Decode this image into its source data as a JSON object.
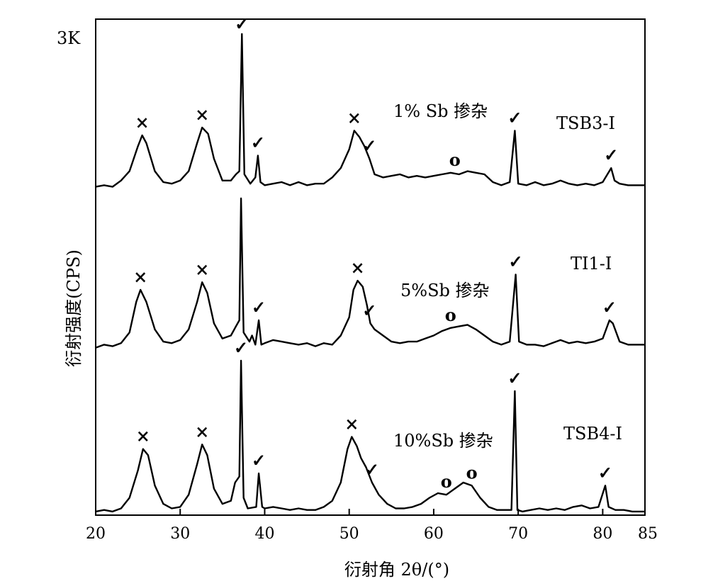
{
  "chart_data": {
    "type": "line",
    "title": "",
    "xlabel": "衍射角 2θ/(°)",
    "ylabel": "衍射强度(CPS)",
    "y_scale_label": "3K",
    "xlim": [
      20,
      85
    ],
    "x_ticks": [
      20,
      30,
      40,
      50,
      60,
      70,
      80,
      85
    ],
    "grid": false,
    "legend": "none",
    "series": [
      {
        "name": "TSB3-Ⅰ",
        "label": "1% Sb 掺杂",
        "points": [
          [
            20,
            0.02
          ],
          [
            21,
            0.03
          ],
          [
            22,
            0.02
          ],
          [
            23,
            0.06
          ],
          [
            24,
            0.12
          ],
          [
            25,
            0.28
          ],
          [
            25.5,
            0.35
          ],
          [
            26,
            0.3
          ],
          [
            27,
            0.12
          ],
          [
            28,
            0.05
          ],
          [
            29,
            0.04
          ],
          [
            30,
            0.06
          ],
          [
            31,
            0.12
          ],
          [
            32,
            0.3
          ],
          [
            32.6,
            0.4
          ],
          [
            33.3,
            0.36
          ],
          [
            34,
            0.2
          ],
          [
            35,
            0.06
          ],
          [
            36,
            0.06
          ],
          [
            36.6,
            0.1
          ],
          [
            37,
            0.12
          ],
          [
            37.3,
            1.0
          ],
          [
            37.6,
            0.1
          ],
          [
            38.3,
            0.04
          ],
          [
            38.9,
            0.08
          ],
          [
            39.2,
            0.22
          ],
          [
            39.5,
            0.05
          ],
          [
            40,
            0.03
          ],
          [
            41,
            0.04
          ],
          [
            42,
            0.05
          ],
          [
            43,
            0.03
          ],
          [
            44,
            0.05
          ],
          [
            45,
            0.03
          ],
          [
            46,
            0.04
          ],
          [
            47,
            0.04
          ],
          [
            48,
            0.08
          ],
          [
            49,
            0.14
          ],
          [
            50,
            0.26
          ],
          [
            50.6,
            0.38
          ],
          [
            51.2,
            0.34
          ],
          [
            51.8,
            0.28
          ],
          [
            52.4,
            0.2
          ],
          [
            53,
            0.1
          ],
          [
            54,
            0.08
          ],
          [
            55,
            0.09
          ],
          [
            56,
            0.1
          ],
          [
            57,
            0.08
          ],
          [
            58,
            0.09
          ],
          [
            59,
            0.08
          ],
          [
            60,
            0.09
          ],
          [
            61,
            0.1
          ],
          [
            62,
            0.11
          ],
          [
            63,
            0.1
          ],
          [
            64,
            0.12
          ],
          [
            65,
            0.11
          ],
          [
            66,
            0.1
          ],
          [
            67,
            0.05
          ],
          [
            68,
            0.03
          ],
          [
            69,
            0.05
          ],
          [
            69.6,
            0.38
          ],
          [
            70,
            0.04
          ],
          [
            71,
            0.03
          ],
          [
            72,
            0.05
          ],
          [
            73,
            0.03
          ],
          [
            74,
            0.04
          ],
          [
            75,
            0.06
          ],
          [
            76,
            0.04
          ],
          [
            77,
            0.03
          ],
          [
            78,
            0.04
          ],
          [
            79,
            0.03
          ],
          [
            80,
            0.05
          ],
          [
            81,
            0.14
          ],
          [
            81.4,
            0.06
          ],
          [
            82,
            0.04
          ],
          [
            83,
            0.03
          ],
          [
            84,
            0.03
          ],
          [
            85,
            0.03
          ]
        ]
      },
      {
        "name": "TI1-Ⅰ",
        "label": "5%Sb 掺杂",
        "points": [
          [
            20,
            0.02
          ],
          [
            21,
            0.04
          ],
          [
            22,
            0.03
          ],
          [
            23,
            0.05
          ],
          [
            24,
            0.12
          ],
          [
            24.8,
            0.32
          ],
          [
            25.3,
            0.4
          ],
          [
            26,
            0.32
          ],
          [
            27,
            0.14
          ],
          [
            28,
            0.06
          ],
          [
            29,
            0.05
          ],
          [
            30,
            0.07
          ],
          [
            31,
            0.14
          ],
          [
            32,
            0.32
          ],
          [
            32.6,
            0.45
          ],
          [
            33.2,
            0.38
          ],
          [
            34,
            0.18
          ],
          [
            35,
            0.08
          ],
          [
            36,
            0.1
          ],
          [
            36.6,
            0.16
          ],
          [
            37,
            0.2
          ],
          [
            37.2,
            1.0
          ],
          [
            37.5,
            0.12
          ],
          [
            38.2,
            0.06
          ],
          [
            38.5,
            0.1
          ],
          [
            38.9,
            0.04
          ],
          [
            39.3,
            0.2
          ],
          [
            39.6,
            0.04
          ],
          [
            40,
            0.05
          ],
          [
            41,
            0.07
          ],
          [
            42,
            0.06
          ],
          [
            43,
            0.05
          ],
          [
            44,
            0.04
          ],
          [
            45,
            0.05
          ],
          [
            46,
            0.03
          ],
          [
            47,
            0.05
          ],
          [
            48,
            0.04
          ],
          [
            49,
            0.1
          ],
          [
            50,
            0.22
          ],
          [
            50.5,
            0.4
          ],
          [
            51,
            0.46
          ],
          [
            51.6,
            0.42
          ],
          [
            52.1,
            0.3
          ],
          [
            52.5,
            0.18
          ],
          [
            53,
            0.14
          ],
          [
            54,
            0.1
          ],
          [
            55,
            0.06
          ],
          [
            56,
            0.05
          ],
          [
            57,
            0.06
          ],
          [
            58,
            0.06
          ],
          [
            59,
            0.08
          ],
          [
            60,
            0.1
          ],
          [
            61,
            0.13
          ],
          [
            62,
            0.15
          ],
          [
            63,
            0.16
          ],
          [
            64,
            0.17
          ],
          [
            65,
            0.14
          ],
          [
            66,
            0.1
          ],
          [
            67,
            0.06
          ],
          [
            68,
            0.04
          ],
          [
            69,
            0.06
          ],
          [
            69.7,
            0.5
          ],
          [
            70.1,
            0.06
          ],
          [
            71,
            0.04
          ],
          [
            72,
            0.04
          ],
          [
            73,
            0.03
          ],
          [
            74,
            0.05
          ],
          [
            75,
            0.07
          ],
          [
            76,
            0.05
          ],
          [
            77,
            0.06
          ],
          [
            78,
            0.05
          ],
          [
            79,
            0.06
          ],
          [
            80,
            0.08
          ],
          [
            80.8,
            0.2
          ],
          [
            81.2,
            0.18
          ],
          [
            82,
            0.06
          ],
          [
            83,
            0.04
          ],
          [
            84,
            0.04
          ],
          [
            85,
            0.04
          ]
        ]
      },
      {
        "name": "TSB4-Ⅰ",
        "label": "10%Sb 掺杂",
        "points": [
          [
            20,
            0.01
          ],
          [
            21,
            0.02
          ],
          [
            22,
            0.01
          ],
          [
            23,
            0.03
          ],
          [
            24,
            0.1
          ],
          [
            25,
            0.28
          ],
          [
            25.6,
            0.42
          ],
          [
            26.2,
            0.38
          ],
          [
            27,
            0.18
          ],
          [
            28,
            0.06
          ],
          [
            29,
            0.03
          ],
          [
            30,
            0.04
          ],
          [
            31,
            0.12
          ],
          [
            32,
            0.32
          ],
          [
            32.6,
            0.45
          ],
          [
            33.2,
            0.38
          ],
          [
            34,
            0.16
          ],
          [
            35,
            0.06
          ],
          [
            36,
            0.08
          ],
          [
            36.5,
            0.2
          ],
          [
            37,
            0.24
          ],
          [
            37.2,
            1.0
          ],
          [
            37.5,
            0.1
          ],
          [
            38,
            0.03
          ],
          [
            39,
            0.04
          ],
          [
            39.3,
            0.26
          ],
          [
            39.7,
            0.04
          ],
          [
            40,
            0.03
          ],
          [
            41,
            0.04
          ],
          [
            42,
            0.03
          ],
          [
            43,
            0.02
          ],
          [
            44,
            0.03
          ],
          [
            45,
            0.02
          ],
          [
            46,
            0.02
          ],
          [
            47,
            0.04
          ],
          [
            48,
            0.08
          ],
          [
            49,
            0.2
          ],
          [
            49.8,
            0.42
          ],
          [
            50.3,
            0.5
          ],
          [
            50.9,
            0.44
          ],
          [
            51.4,
            0.36
          ],
          [
            52,
            0.3
          ],
          [
            52.7,
            0.2
          ],
          [
            53.5,
            0.12
          ],
          [
            54.5,
            0.06
          ],
          [
            55.5,
            0.03
          ],
          [
            56.5,
            0.03
          ],
          [
            57.5,
            0.04
          ],
          [
            58.5,
            0.06
          ],
          [
            59.5,
            0.1
          ],
          [
            60.5,
            0.13
          ],
          [
            61.5,
            0.12
          ],
          [
            62.5,
            0.16
          ],
          [
            63.5,
            0.2
          ],
          [
            64.5,
            0.18
          ],
          [
            65.5,
            0.1
          ],
          [
            66.5,
            0.04
          ],
          [
            67.5,
            0.02
          ],
          [
            68.5,
            0.02
          ],
          [
            69.2,
            0.02
          ],
          [
            69.6,
            0.8
          ],
          [
            69.9,
            0.02
          ],
          [
            70.5,
            0.01
          ],
          [
            71.5,
            0.02
          ],
          [
            72.5,
            0.03
          ],
          [
            73.5,
            0.02
          ],
          [
            74.5,
            0.03
          ],
          [
            75.5,
            0.02
          ],
          [
            76.5,
            0.04
          ],
          [
            77.5,
            0.05
          ],
          [
            78.5,
            0.03
          ],
          [
            79.5,
            0.04
          ],
          [
            80.3,
            0.18
          ],
          [
            80.7,
            0.04
          ],
          [
            81.5,
            0.02
          ],
          [
            82.5,
            0.02
          ],
          [
            83.5,
            0.01
          ],
          [
            85,
            0.01
          ]
        ]
      }
    ],
    "peak_markers": [
      [
        {
          "x": 25.5,
          "symbol": "×"
        },
        {
          "x": 32.6,
          "symbol": "×"
        },
        {
          "x": 37.3,
          "symbol": "✓"
        },
        {
          "x": 39.2,
          "symbol": "✓"
        },
        {
          "x": 50.6,
          "symbol": "×"
        },
        {
          "x": 52.4,
          "symbol": "✓"
        },
        {
          "x": 62.5,
          "symbol": "o"
        },
        {
          "x": 69.6,
          "symbol": "✓"
        },
        {
          "x": 81.0,
          "symbol": "✓"
        }
      ],
      [
        {
          "x": 25.3,
          "symbol": "×"
        },
        {
          "x": 32.6,
          "symbol": "×"
        },
        {
          "x": 39.3,
          "symbol": "✓"
        },
        {
          "x": 51.0,
          "symbol": "×"
        },
        {
          "x": 52.4,
          "symbol": "✓"
        },
        {
          "x": 62.0,
          "symbol": "o"
        },
        {
          "x": 69.7,
          "symbol": "✓"
        },
        {
          "x": 80.8,
          "symbol": "✓"
        }
      ],
      [
        {
          "x": 25.6,
          "symbol": "×"
        },
        {
          "x": 32.6,
          "symbol": "×"
        },
        {
          "x": 37.2,
          "symbol": "✓"
        },
        {
          "x": 39.3,
          "symbol": "✓"
        },
        {
          "x": 50.3,
          "symbol": "×"
        },
        {
          "x": 52.7,
          "symbol": "✓"
        },
        {
          "x": 61.5,
          "symbol": "o"
        },
        {
          "x": 64.5,
          "symbol": "o"
        },
        {
          "x": 69.6,
          "symbol": "✓"
        },
        {
          "x": 80.3,
          "symbol": "✓"
        }
      ]
    ]
  }
}
